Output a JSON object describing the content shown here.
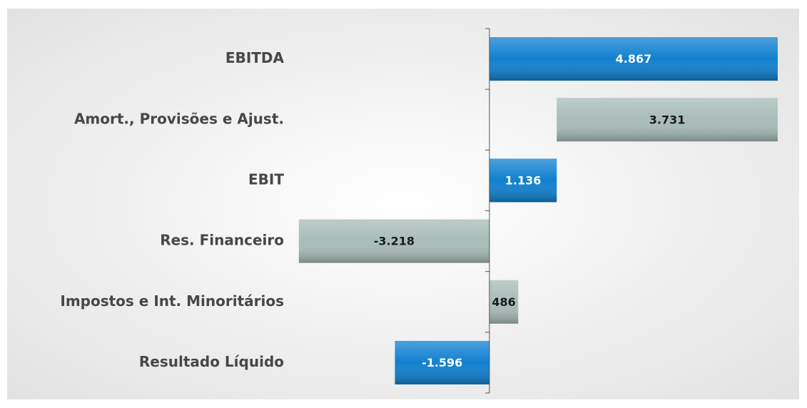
{
  "chart_data": {
    "type": "waterfall",
    "categories": [
      "EBITDA",
      "Amort., Provisões e Ajust.",
      "EBIT",
      "Res. Financeiro",
      "Impostos e Int. Minoritários",
      "Resultado Líquido"
    ],
    "values": [
      4867,
      3731,
      1136,
      -3218,
      486,
      -1596
    ],
    "value_labels": [
      "4.867",
      "3.731",
      "1.136",
      "-3.218",
      "486",
      "-1.596"
    ],
    "measure": [
      "total",
      "decrease",
      "total",
      "total",
      "total",
      "total"
    ],
    "colors": [
      "#1080d0",
      "#a8bcb8",
      "#1080d0",
      "#a8bcb8",
      "#a8bcb8",
      "#1080d0"
    ],
    "xlim": [
      -3300,
      5000
    ]
  }
}
